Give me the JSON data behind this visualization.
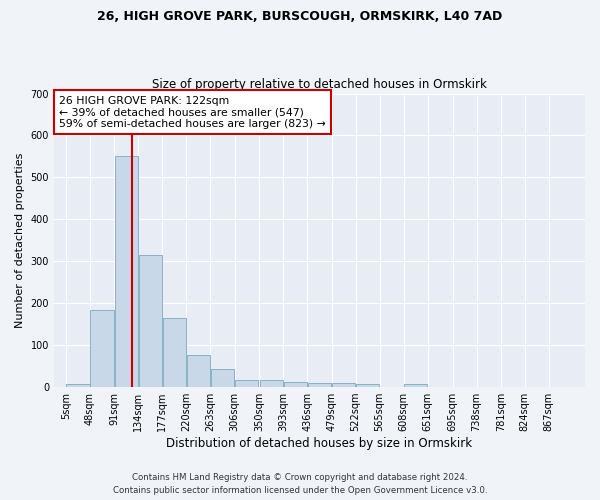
{
  "title1": "26, HIGH GROVE PARK, BURSCOUGH, ORMSKIRK, L40 7AD",
  "title2": "Size of property relative to detached houses in Ormskirk",
  "xlabel": "Distribution of detached houses by size in Ormskirk",
  "ylabel": "Number of detached properties",
  "bar_color": "#c8d8e8",
  "bar_edge_color": "#7aaabb",
  "background_color": "#e8edf5",
  "grid_color": "#ffffff",
  "bin_labels": [
    "5sqm",
    "48sqm",
    "91sqm",
    "134sqm",
    "177sqm",
    "220sqm",
    "263sqm",
    "306sqm",
    "350sqm",
    "393sqm",
    "436sqm",
    "479sqm",
    "522sqm",
    "565sqm",
    "608sqm",
    "651sqm",
    "695sqm",
    "738sqm",
    "781sqm",
    "824sqm",
    "867sqm"
  ],
  "bar_heights": [
    8,
    185,
    550,
    315,
    165,
    77,
    42,
    17,
    18,
    12,
    10,
    10,
    8,
    0,
    7,
    0,
    0,
    0,
    0,
    0,
    0
  ],
  "bin_edges": [
    5,
    48,
    91,
    134,
    177,
    220,
    263,
    306,
    350,
    393,
    436,
    479,
    522,
    565,
    608,
    651,
    695,
    738,
    781,
    824,
    867
  ],
  "bin_width": 43,
  "red_line_x": 122,
  "red_line_color": "#cc0000",
  "annotation_text": "26 HIGH GROVE PARK: 122sqm\n← 39% of detached houses are smaller (547)\n59% of semi-detached houses are larger (823) →",
  "annotation_box_color": "#ffffff",
  "annotation_box_edge": "#cc0000",
  "ylim": [
    0,
    700
  ],
  "yticks": [
    0,
    100,
    200,
    300,
    400,
    500,
    600,
    700
  ],
  "footnote1": "Contains HM Land Registry data © Crown copyright and database right 2024.",
  "footnote2": "Contains public sector information licensed under the Open Government Licence v3.0."
}
